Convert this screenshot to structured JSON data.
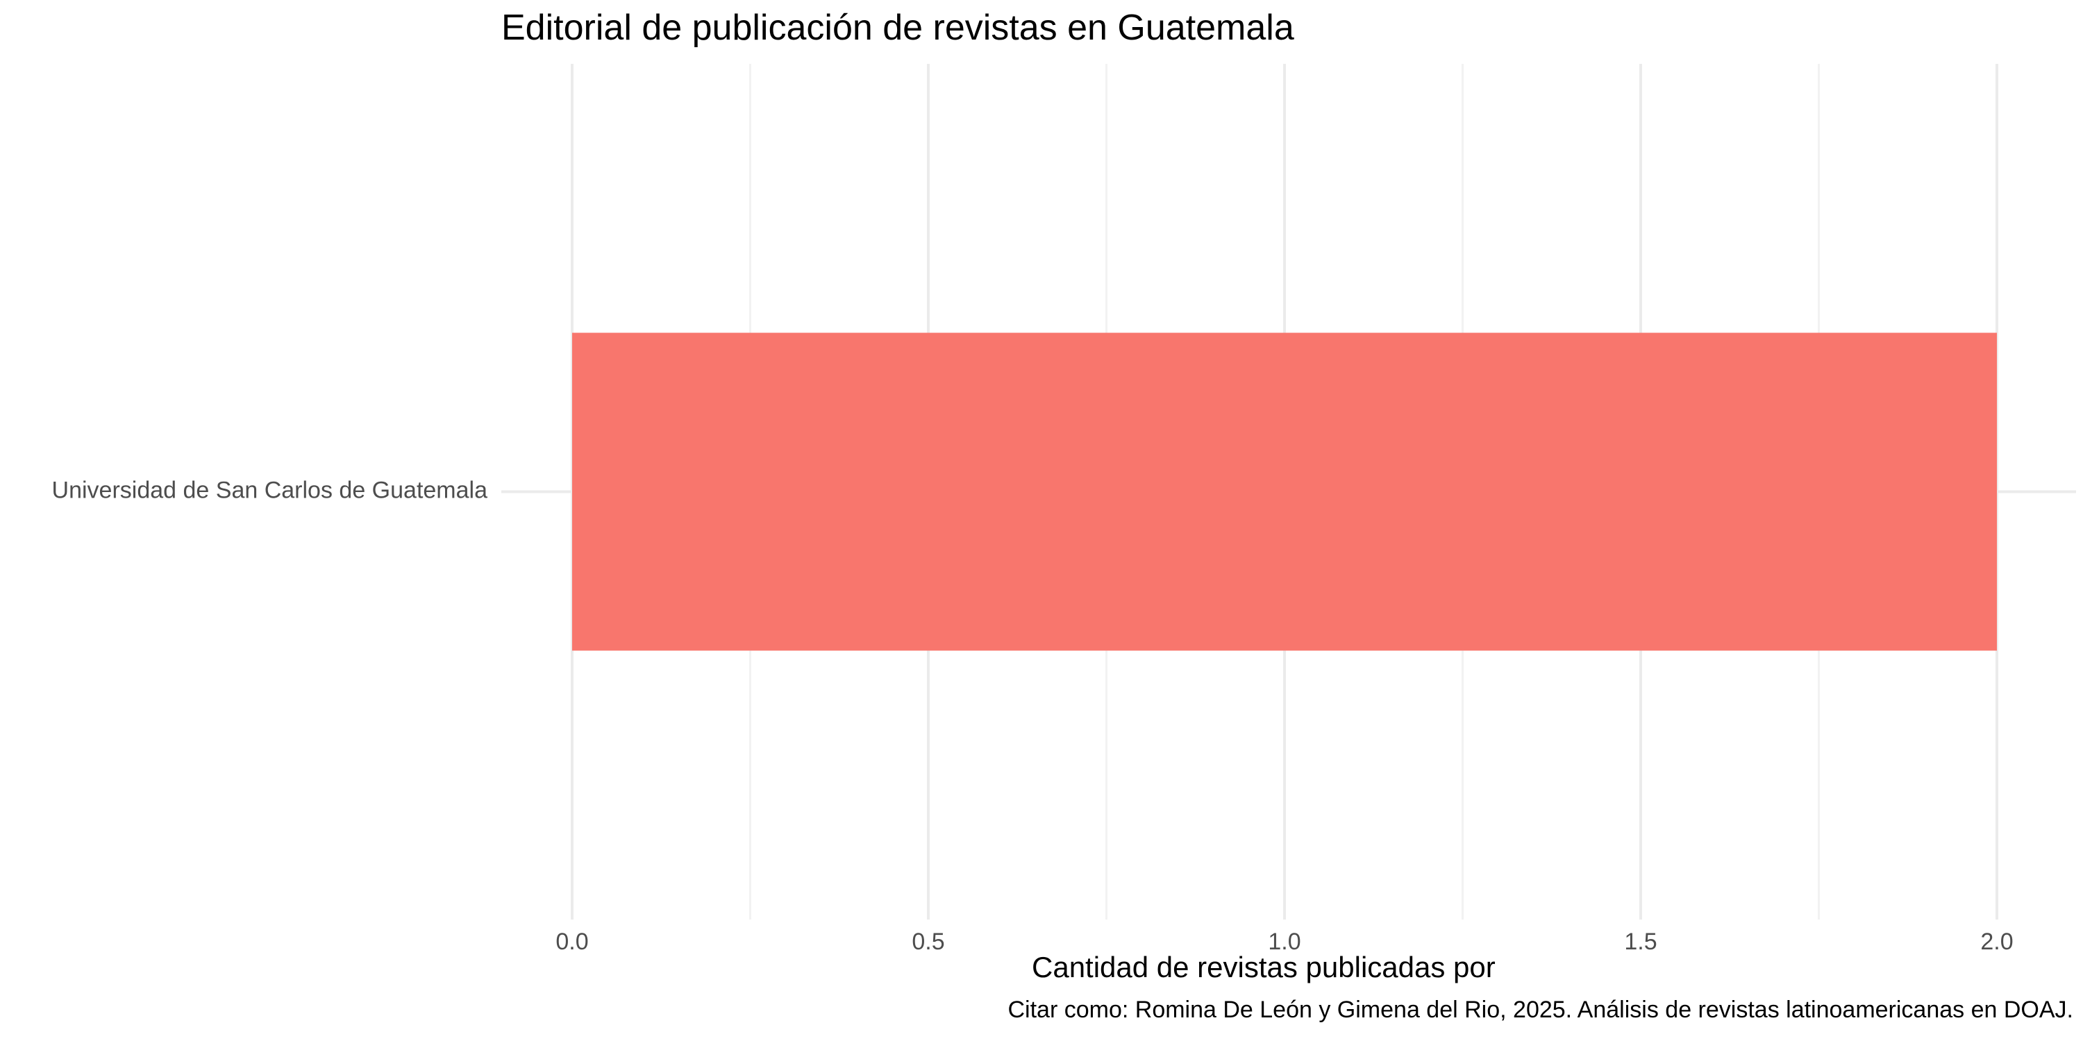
{
  "chart_data": {
    "type": "bar",
    "orientation": "horizontal",
    "title": "Editorial de publicación de revistas en Guatemala",
    "xlabel": "Cantidad de revistas publicadas por",
    "ylabel": "",
    "caption": "Citar como: Romina De León y Gimena del Rio, 2025. Análisis de revistas latinoamericanas en DOAJ.",
    "categories": [
      "Universidad de San Carlos de Guatemala"
    ],
    "values": [
      2
    ],
    "xlim": [
      0,
      2.1
    ],
    "x_ticks": [
      0.0,
      0.5,
      1.0,
      1.5,
      2.0
    ],
    "x_tick_labels": [
      "0.0",
      "0.5",
      "1.0",
      "1.5",
      "2.0"
    ],
    "grid": true,
    "legend": "none",
    "colors": {
      "bar": "#F8766D",
      "grid_major": "#EBEBEB",
      "grid_minor": "#F2F2F2",
      "tick_text": "#4D4D4D"
    }
  }
}
